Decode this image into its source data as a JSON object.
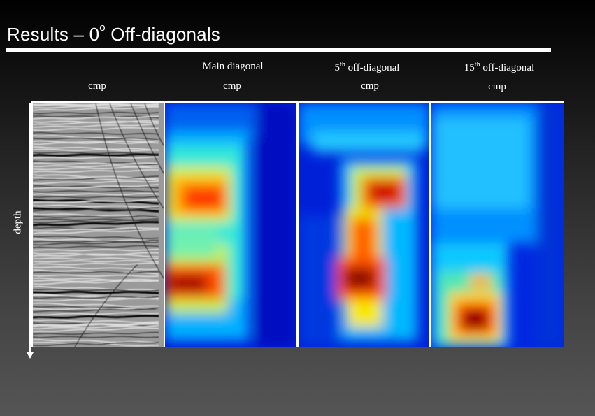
{
  "slide": {
    "title_prefix": "Results – 0",
    "title_sup": "o",
    "title_suffix": " Off-diagonals"
  },
  "columns": [
    {
      "header_pre": "",
      "header_sup": "",
      "header_post": "",
      "axis_label": "cmp",
      "image": "seismic-section"
    },
    {
      "header_pre": "Main diagonal",
      "header_sup": "",
      "header_post": "",
      "axis_label": "cmp",
      "image": "main-diagonal-heatmap"
    },
    {
      "header_pre": "5",
      "header_sup": "th",
      "header_post": " off-diagonal",
      "axis_label": "cmp",
      "image": "fifth-off-diagonal-heatmap"
    },
    {
      "header_pre": "15",
      "header_sup": "th",
      "header_post": " off-diagonal",
      "axis_label": "cmp",
      "image": "fifteenth-off-diagonal-heatmap"
    }
  ],
  "axis": {
    "vertical_label": "depth"
  },
  "colormap": {
    "low": "#0000c8",
    "mid_low": "#00c8ff",
    "mid": "#ffff00",
    "mid_high": "#ff4000",
    "high": "#7a0000"
  }
}
